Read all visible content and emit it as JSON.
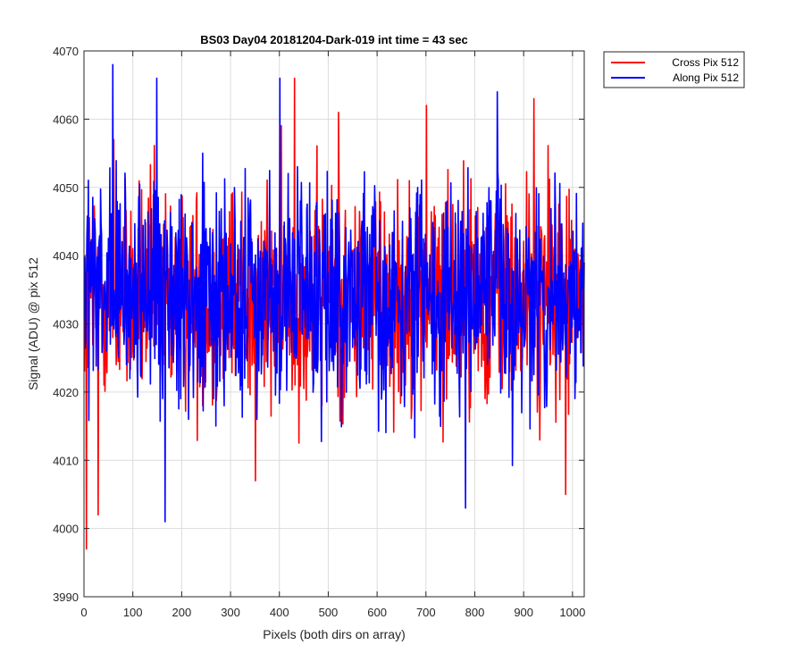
{
  "chart_data": {
    "type": "line",
    "title": "BS03 Day04 20181204-Dark-019 int time = 43 sec",
    "xlabel": "Pixels (both dirs on array)",
    "ylabel": "Signal (ADU) @ pix 512",
    "xlim": [
      0,
      1024
    ],
    "ylim": [
      3990,
      4070
    ],
    "xticks": [
      0,
      100,
      200,
      300,
      400,
      500,
      600,
      700,
      800,
      900,
      1000
    ],
    "yticks": [
      3990,
      4000,
      4010,
      4020,
      4030,
      4040,
      4050,
      4060,
      4070
    ],
    "grid": true,
    "legend_position": "outside-top-right",
    "noise_summary": {
      "samples_per_series": 1024,
      "approx_mean": 4034,
      "approx_range": [
        3997,
        4068
      ]
    },
    "series": [
      {
        "name": "Cross Pix 512",
        "color": "#ff0000",
        "notable_points": [
          {
            "x": 4,
            "y": 3997
          },
          {
            "x": 28,
            "y": 4002
          },
          {
            "x": 60,
            "y": 4057
          },
          {
            "x": 350,
            "y": 4007
          },
          {
            "x": 430,
            "y": 4066
          },
          {
            "x": 520,
            "y": 4061
          },
          {
            "x": 700,
            "y": 4062
          },
          {
            "x": 920,
            "y": 4063
          },
          {
            "x": 985,
            "y": 4005
          }
        ]
      },
      {
        "name": "Along Pix 512",
        "color": "#0000ff",
        "notable_points": [
          {
            "x": 58,
            "y": 4068
          },
          {
            "x": 148,
            "y": 4066
          },
          {
            "x": 165,
            "y": 4001
          },
          {
            "x": 400,
            "y": 4066
          },
          {
            "x": 780,
            "y": 4003
          },
          {
            "x": 845,
            "y": 4064
          }
        ]
      }
    ]
  }
}
